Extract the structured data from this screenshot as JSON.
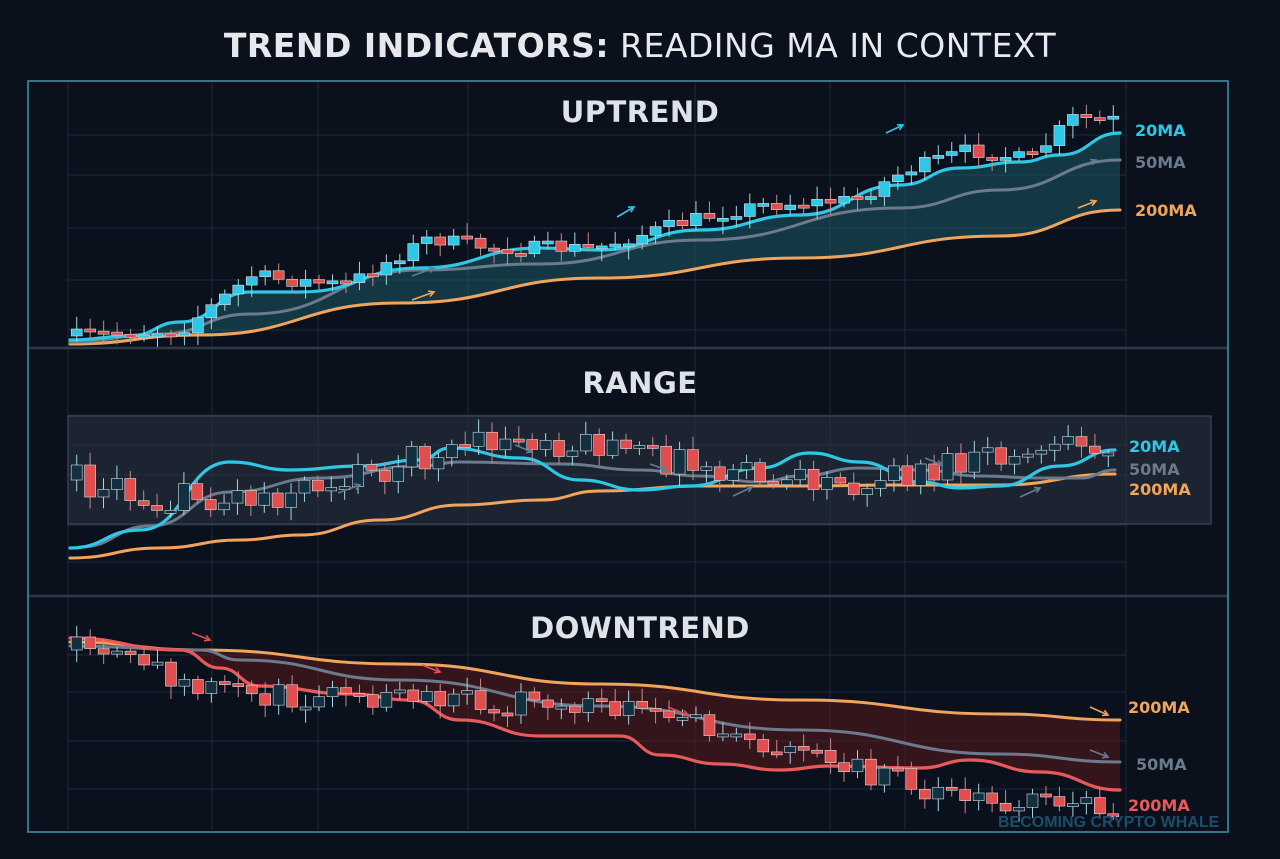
{
  "title": {
    "bold": "TREND INDICATORS:",
    "light": " READING MA IN CONTEXT"
  },
  "watermark": "BECOMING CRYPTO WHALE",
  "colors": {
    "background": "#0b111c",
    "frame": "#3a8fa0",
    "grid": "#1d2a3a",
    "divider": "#2d3a4a",
    "ma20": "#2ec8e6",
    "ma50": "#6b7a8c",
    "ma200": "#f0a45c",
    "ma_down_fast": "#e85a5a",
    "bull": "#2ec8e6",
    "bear": "#e04e4e",
    "up_fill": "#1b5a66",
    "down_fill": "#5a1a1e",
    "range_box": "#2a3442"
  },
  "panels": {
    "uptrend": {
      "title": "UPTREND",
      "labels": [
        "20MA",
        "50MA",
        "200MA"
      ]
    },
    "range": {
      "title": "RANGE",
      "labels": [
        "20MA",
        "50MA",
        "200MA"
      ]
    },
    "downtrend": {
      "title": "DOWNTREND",
      "labels": [
        "200MA",
        "50MA",
        "200MA"
      ]
    }
  },
  "chart_data": [
    {
      "type": "line",
      "title": "UPTREND",
      "xlabel": "",
      "ylabel": "",
      "grid": true,
      "legend_position": "right",
      "series": [
        {
          "name": "20MA",
          "color": "#2ec8e6",
          "x": [
            0,
            0.07,
            0.18,
            0.3,
            0.45,
            0.6,
            0.7,
            0.8,
            0.87,
            0.9,
            0.95,
            1.0
          ],
          "y": [
            0.0,
            0.05,
            0.28,
            0.33,
            0.45,
            0.52,
            0.6,
            0.7,
            0.78,
            0.8,
            0.86,
            0.96
          ]
        },
        {
          "name": "50MA",
          "color": "#6b7a8c",
          "x": [
            0,
            0.1,
            0.2,
            0.35,
            0.5,
            0.65,
            0.8,
            1.0
          ],
          "y": [
            0.0,
            0.06,
            0.13,
            0.22,
            0.33,
            0.44,
            0.56,
            0.75
          ]
        },
        {
          "name": "200MA",
          "color": "#f0a45c",
          "x": [
            0,
            0.1,
            0.3,
            0.5,
            0.7,
            1.0
          ],
          "y": [
            0.0,
            0.03,
            0.14,
            0.25,
            0.38,
            0.58
          ]
        }
      ]
    },
    {
      "type": "line",
      "title": "RANGE",
      "grid": true,
      "legend_position": "right",
      "series": [
        {
          "name": "20MA",
          "color": "#2ec8e6"
        },
        {
          "name": "50MA",
          "color": "#6b7a8c"
        },
        {
          "name": "200MA",
          "color": "#f0a45c"
        }
      ]
    },
    {
      "type": "line",
      "title": "DOWNTREND",
      "grid": true,
      "legend_position": "right",
      "series": [
        {
          "name": "200MA",
          "color": "#f0a45c"
        },
        {
          "name": "50MA",
          "color": "#6b7a8c"
        },
        {
          "name": "200MA",
          "color": "#e85a5a"
        }
      ]
    }
  ]
}
